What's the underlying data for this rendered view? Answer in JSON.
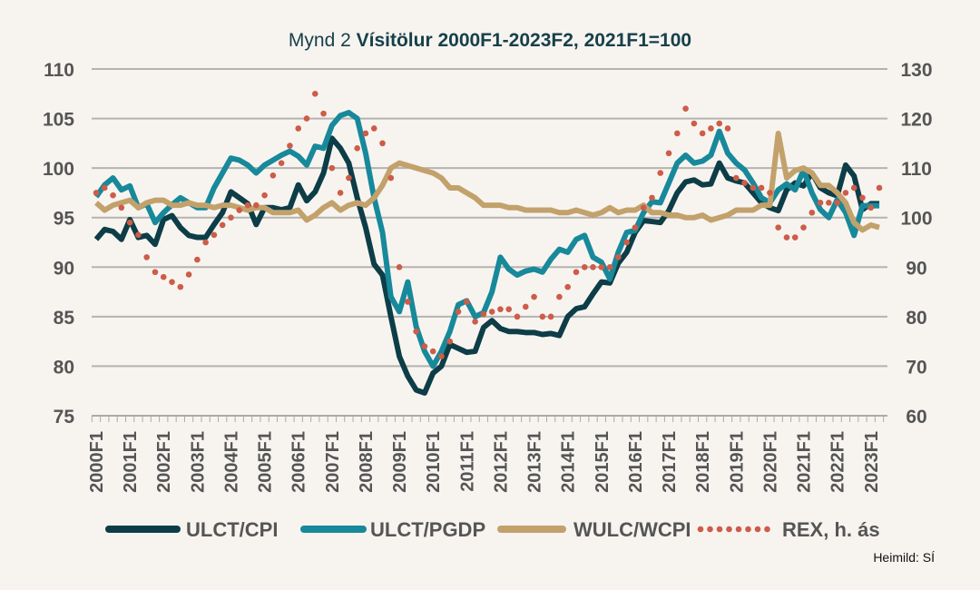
{
  "chart_data": {
    "type": "line",
    "title_prefix": "Mynd 2",
    "title": "Vísitölur 2000F1-2023F2, 2021F1=100",
    "source": "Heimild: SÍ",
    "xlabel": "",
    "ylabel_left": "",
    "ylabel_right": "",
    "ylim_left": [
      75,
      110
    ],
    "ylim_right": [
      60,
      130
    ],
    "yticks_left": [
      "75",
      "80",
      "85",
      "90",
      "95",
      "100",
      "105",
      "110"
    ],
    "yticks_right": [
      "60",
      "70",
      "80",
      "90",
      "100",
      "110",
      "120",
      "130"
    ],
    "x_tick_labels": [
      "2000F1",
      "2001F1",
      "2002F1",
      "2003F1",
      "2004F1",
      "2005F1",
      "2006F1",
      "2007F1",
      "2008F1",
      "2009F1",
      "2010F1",
      "2011F1",
      "2012F1",
      "2013F1",
      "2014F1",
      "2015F1",
      "2016F1",
      "2017F1",
      "2018F1",
      "2019F1",
      "2020F1",
      "2021F1",
      "2022F1",
      "2023F1"
    ],
    "x_start": "2000F1",
    "x_end": "2023F2",
    "grid": "horizontal",
    "legend_position": "bottom",
    "series": [
      {
        "name": "ULCT/CPI",
        "axis": "left",
        "style": "solid",
        "color": "#0d3d47",
        "values": [
          92.8,
          93.8,
          93.6,
          92.8,
          94.8,
          93,
          93.2,
          92.3,
          94.8,
          95.2,
          94,
          93.2,
          93,
          93,
          94.3,
          95.5,
          97.6,
          97,
          96.4,
          94.3,
          96,
          96,
          95.8,
          96,
          98.3,
          96.7,
          97.6,
          99.5,
          103,
          102,
          100.5,
          97,
          94,
          90.3,
          89.2,
          85,
          81,
          79,
          77.6,
          77.3,
          79.3,
          80,
          82.2,
          81.8,
          81.4,
          81.5,
          83.9,
          84.6,
          83.8,
          83.5,
          83.5,
          83.4,
          83.4,
          83.2,
          83.3,
          83.1,
          85,
          85.8,
          86,
          87.3,
          88.5,
          88.4,
          90.4,
          91.5,
          93.5,
          94.7,
          94.6,
          94.5,
          95.7,
          97.5,
          98.6,
          98.8,
          98.3,
          98.4,
          100.5,
          99,
          98.7,
          98.5,
          97.5,
          96.5,
          96,
          95.7,
          97.8,
          98.5,
          98.2,
          99.5,
          98,
          97.5,
          97.2,
          100.3,
          99.2,
          95.8,
          96.4,
          96.4
        ]
      },
      {
        "name": "ULCT/PGDP",
        "axis": "left",
        "style": "solid",
        "color": "#17899a",
        "values": [
          97.1,
          98.3,
          99,
          97.8,
          98.2,
          96,
          96.4,
          94.5,
          95.5,
          96.3,
          97,
          96.5,
          96,
          96,
          98,
          99.5,
          101,
          100.8,
          100.3,
          99.5,
          100.3,
          100.8,
          101.3,
          101.7,
          101.2,
          100.3,
          102.2,
          102,
          104.3,
          105.3,
          105.6,
          105,
          101.5,
          97,
          93.5,
          87,
          85.5,
          88.5,
          84,
          81.5,
          80,
          81.5,
          83.5,
          86.2,
          86.6,
          85,
          85.4,
          87.5,
          91,
          89.8,
          89.2,
          89.6,
          89.8,
          89.5,
          90.8,
          91.8,
          91.5,
          92.8,
          93.2,
          91,
          90.5,
          88.8,
          91.5,
          93.5,
          93.7,
          95.5,
          96.6,
          96.5,
          98.5,
          100.5,
          101.3,
          100.5,
          100.7,
          101.3,
          103.7,
          101.5,
          100.5,
          99.8,
          98.5,
          97,
          96.5,
          97.8,
          98.4,
          97.8,
          99.8,
          97.5,
          95.8,
          95,
          96.8,
          95.5,
          93.2,
          96.2,
          96.2,
          96.2
        ]
      },
      {
        "name": "WULC/WCPI",
        "axis": "left",
        "style": "solid",
        "color": "#c3a16b",
        "axis_actual": "right",
        "values": [
          103,
          101.5,
          102.5,
          103,
          103.5,
          102,
          103,
          103.5,
          103.5,
          102.5,
          102.5,
          103,
          102.5,
          102.5,
          102,
          102.5,
          102.5,
          102,
          101.5,
          102,
          102,
          101,
          101,
          101,
          101.5,
          99.5,
          100.5,
          102,
          103,
          101.5,
          102.5,
          103,
          102.5,
          104,
          106.5,
          110,
          111,
          110.5,
          110,
          109.5,
          109,
          108,
          106,
          106,
          105,
          104,
          102.5,
          102.5,
          102.5,
          102,
          102,
          101.5,
          101.5,
          101.5,
          101.5,
          101,
          101,
          101.5,
          101,
          100.5,
          101,
          102,
          101,
          101.5,
          101.5,
          102.5,
          101,
          101,
          100.5,
          100.5,
          100,
          100,
          100.5,
          99.5,
          100,
          100.5,
          101.5,
          101.5,
          101.5,
          102.5,
          102.5,
          117,
          108,
          109.5,
          110,
          109,
          106.5,
          106.5,
          105,
          103,
          99,
          97.5,
          98.5,
          98
        ]
      },
      {
        "name": "REX, h. ás",
        "axis": "right",
        "style": "dotted",
        "color": "#cd5c48",
        "values": [
          105,
          106,
          104.5,
          102,
          99,
          96.5,
          92,
          89,
          88,
          87,
          86,
          88.5,
          91.5,
          95,
          96.5,
          98.5,
          100,
          101.5,
          102.5,
          102.5,
          104.5,
          108.5,
          111,
          114.5,
          118,
          120,
          125,
          121,
          110,
          105,
          108,
          114,
          117,
          118,
          115,
          108,
          90,
          83,
          77,
          74,
          73,
          72,
          75,
          81,
          83,
          79,
          80.5,
          81,
          81.5,
          81.5,
          80,
          82,
          84,
          80,
          80,
          84,
          86,
          89,
          90,
          90,
          90,
          90,
          92,
          95,
          98,
          102,
          104,
          109,
          113,
          117,
          122,
          119,
          117,
          118,
          119,
          118,
          108,
          107,
          106,
          106,
          105,
          98,
          96,
          96,
          98,
          101,
          103,
          103,
          103,
          105,
          106,
          104,
          102,
          106
        ]
      }
    ]
  }
}
